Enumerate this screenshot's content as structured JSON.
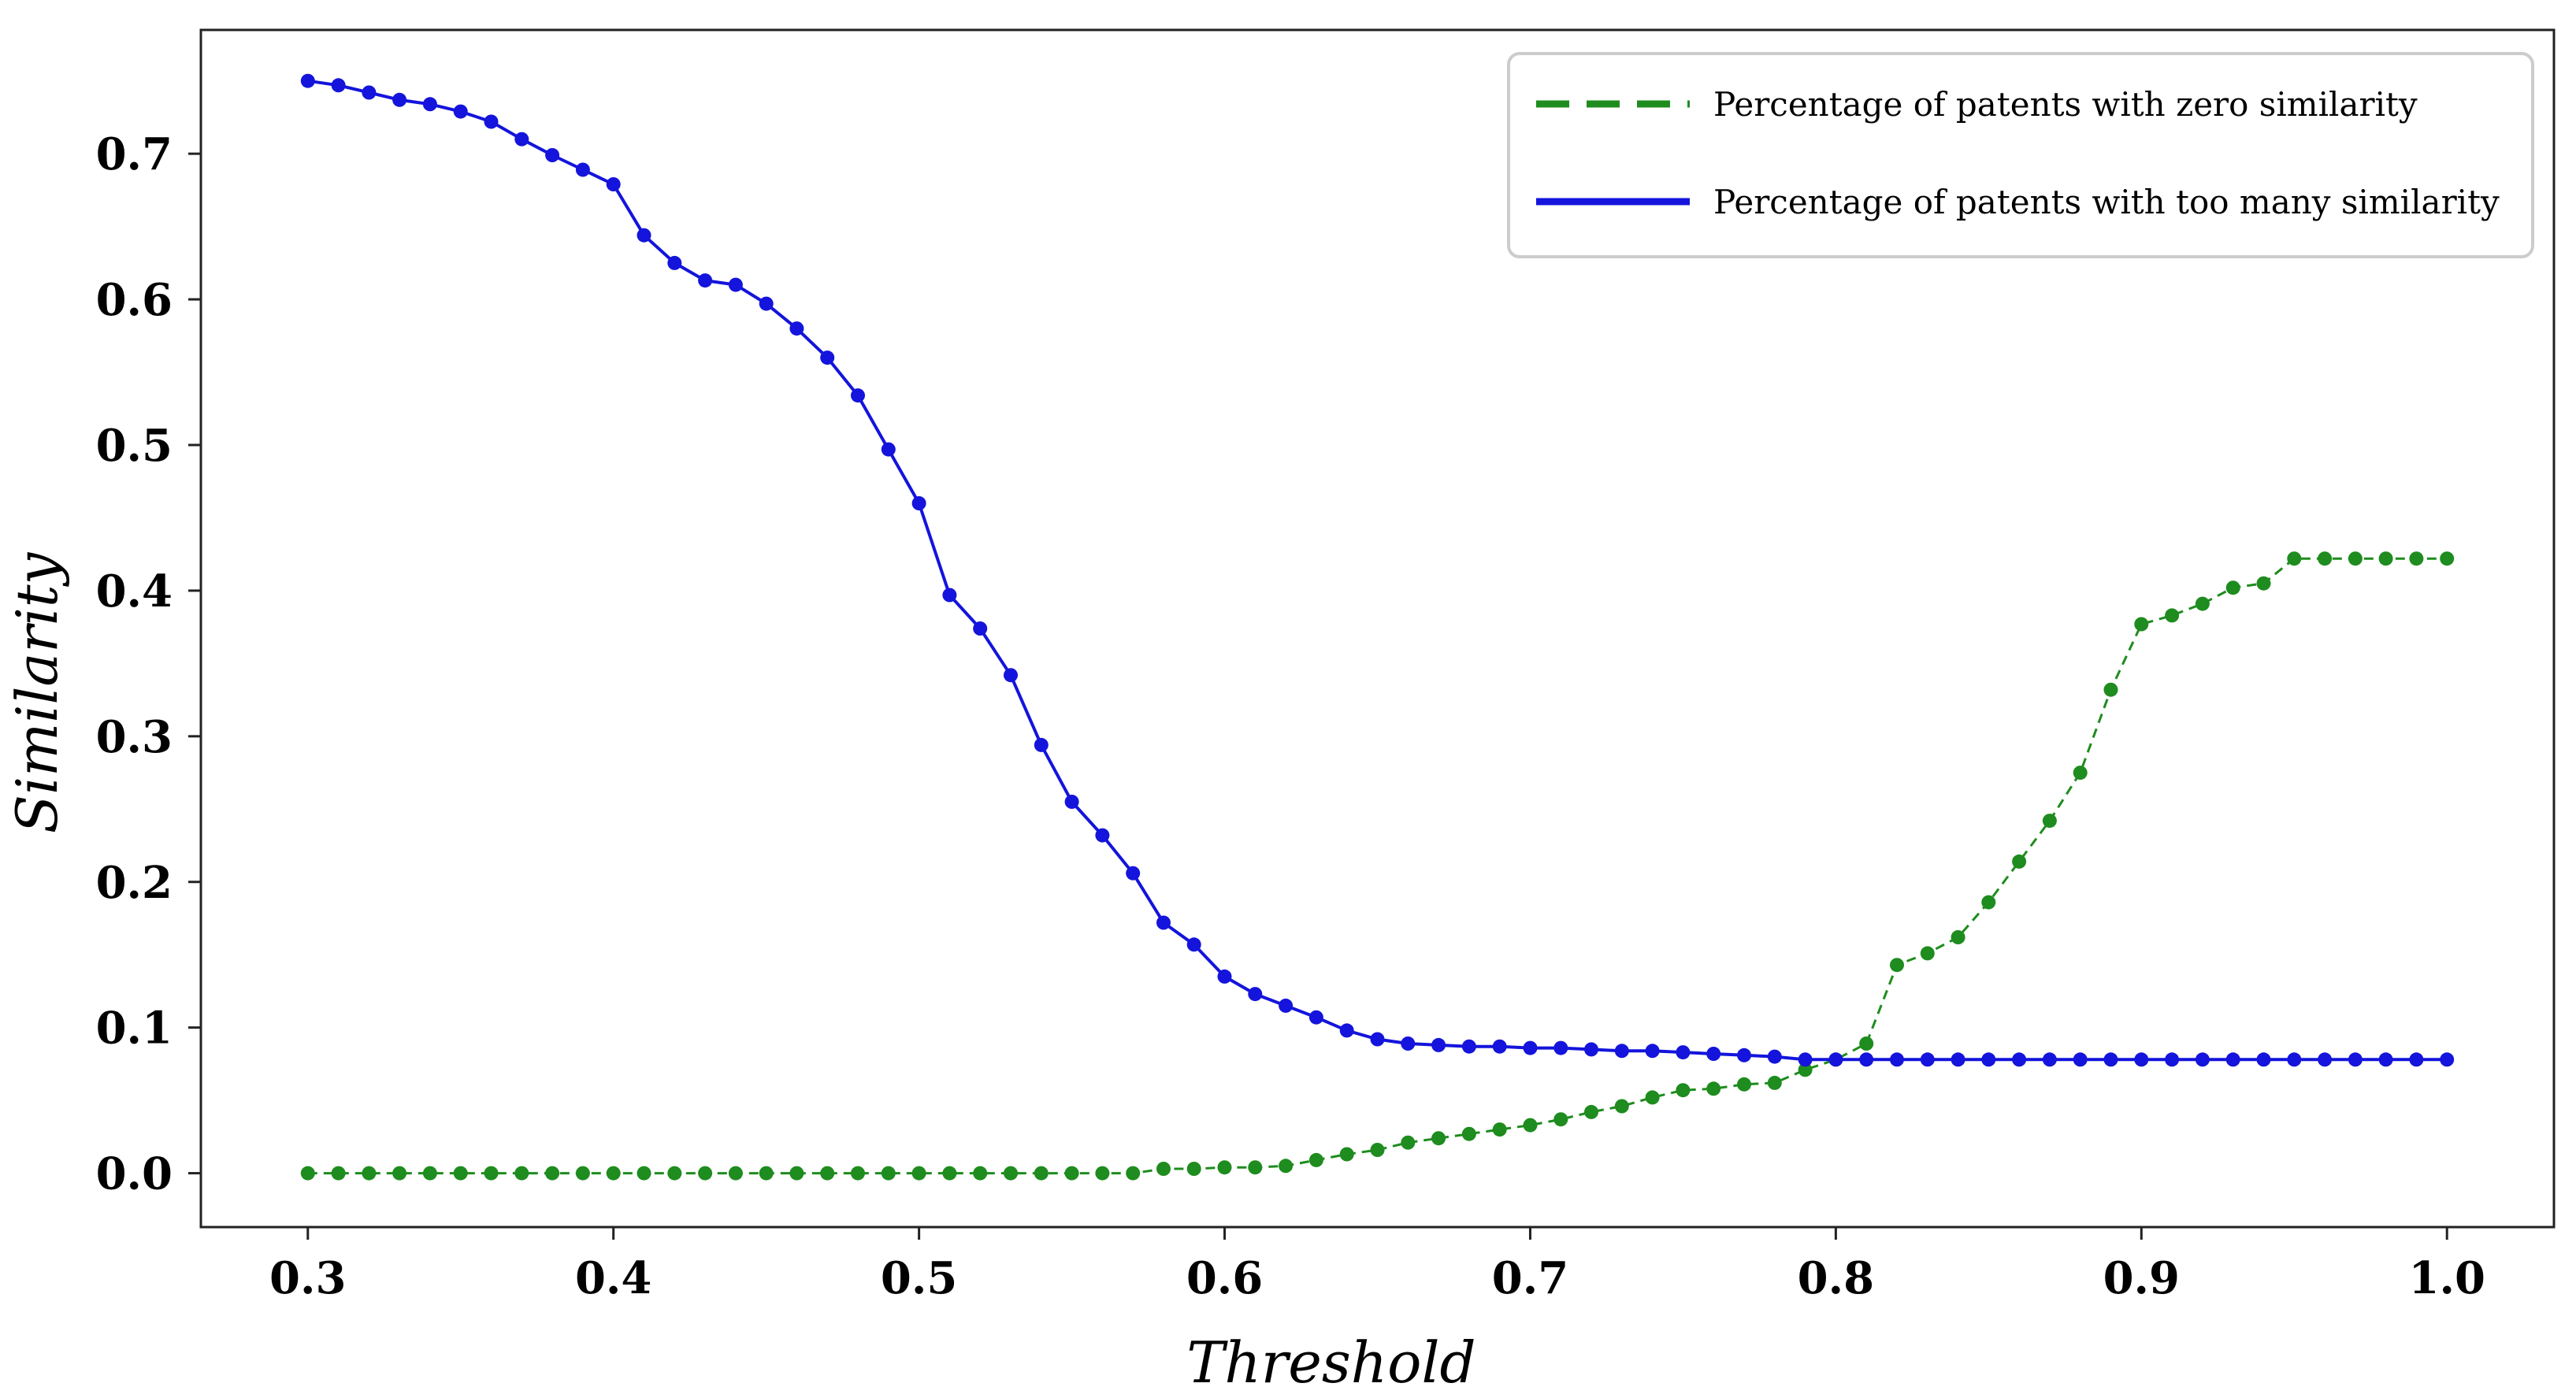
{
  "chart_data": {
    "type": "line",
    "title": "",
    "xlabel": "Threshold",
    "ylabel": "Similarity",
    "xlim": [
      0.265,
      1.035
    ],
    "ylim": [
      -0.037,
      0.785
    ],
    "xticks": [
      0.3,
      0.4,
      0.5,
      0.6,
      0.7,
      0.8,
      0.9,
      1.0
    ],
    "xtick_labels": [
      "0.3",
      "0.4",
      "0.5",
      "0.6",
      "0.7",
      "0.8",
      "0.9",
      "1.0"
    ],
    "yticks": [
      0.0,
      0.1,
      0.2,
      0.3,
      0.4,
      0.5,
      0.6,
      0.7
    ],
    "ytick_labels": [
      "0.0",
      "0.1",
      "0.2",
      "0.3",
      "0.4",
      "0.5",
      "0.6",
      "0.7"
    ],
    "legend_position": "top-right",
    "x": [
      0.3,
      0.31,
      0.32,
      0.33,
      0.34,
      0.35,
      0.36,
      0.37,
      0.38,
      0.39,
      0.4,
      0.41,
      0.42,
      0.43,
      0.44,
      0.45,
      0.46,
      0.47,
      0.48,
      0.49,
      0.5,
      0.51,
      0.52,
      0.53,
      0.54,
      0.55,
      0.56,
      0.57,
      0.58,
      0.59,
      0.6,
      0.61,
      0.62,
      0.63,
      0.64,
      0.65,
      0.66,
      0.67,
      0.68,
      0.69,
      0.7,
      0.71,
      0.72,
      0.73,
      0.74,
      0.75,
      0.76,
      0.77,
      0.78,
      0.79,
      0.8,
      0.81,
      0.82,
      0.83,
      0.84,
      0.85,
      0.86,
      0.87,
      0.88,
      0.89,
      0.9,
      0.91,
      0.92,
      0.93,
      0.94,
      0.95,
      0.96,
      0.97,
      0.98,
      0.99,
      1.0
    ],
    "series": [
      {
        "name": "Percentage of patents with zero similarity",
        "color": "#1e8c1e",
        "style": "dashed",
        "values": [
          0,
          0,
          0,
          0,
          0,
          0,
          0,
          0,
          0,
          0,
          0,
          0,
          0,
          0,
          0,
          0,
          0,
          0,
          0,
          0,
          0,
          0,
          0,
          0,
          0,
          0,
          0,
          0,
          0.003,
          0.003,
          0.004,
          0.004,
          0.005,
          0.009,
          0.013,
          0.016,
          0.021,
          0.024,
          0.027,
          0.03,
          0.033,
          0.037,
          0.042,
          0.046,
          0.052,
          0.057,
          0.058,
          0.061,
          0.062,
          0.071,
          0.078,
          0.089,
          0.143,
          0.151,
          0.162,
          0.186,
          0.214,
          0.242,
          0.275,
          0.332,
          0.377,
          0.383,
          0.391,
          0.402,
          0.405,
          0.422,
          0.422,
          0.422,
          0.422,
          0.422,
          0.422
        ]
      },
      {
        "name": "Percentage of patents with too many similarity",
        "color": "#1414dc",
        "style": "solid",
        "values": [
          0.75,
          0.747,
          0.742,
          0.737,
          0.734,
          0.729,
          0.722,
          0.71,
          0.699,
          0.689,
          0.679,
          0.644,
          0.625,
          0.613,
          0.61,
          0.597,
          0.58,
          0.56,
          0.534,
          0.497,
          0.46,
          0.397,
          0.374,
          0.342,
          0.294,
          0.255,
          0.232,
          0.206,
          0.172,
          0.157,
          0.135,
          0.123,
          0.115,
          0.107,
          0.098,
          0.092,
          0.089,
          0.088,
          0.087,
          0.087,
          0.086,
          0.086,
          0.085,
          0.084,
          0.084,
          0.083,
          0.082,
          0.081,
          0.08,
          0.078,
          0.078,
          0.078,
          0.078,
          0.078,
          0.078,
          0.078,
          0.078,
          0.078,
          0.078,
          0.078,
          0.078,
          0.078,
          0.078,
          0.078,
          0.078,
          0.078,
          0.078,
          0.078,
          0.078,
          0.078,
          0.078
        ]
      }
    ]
  }
}
